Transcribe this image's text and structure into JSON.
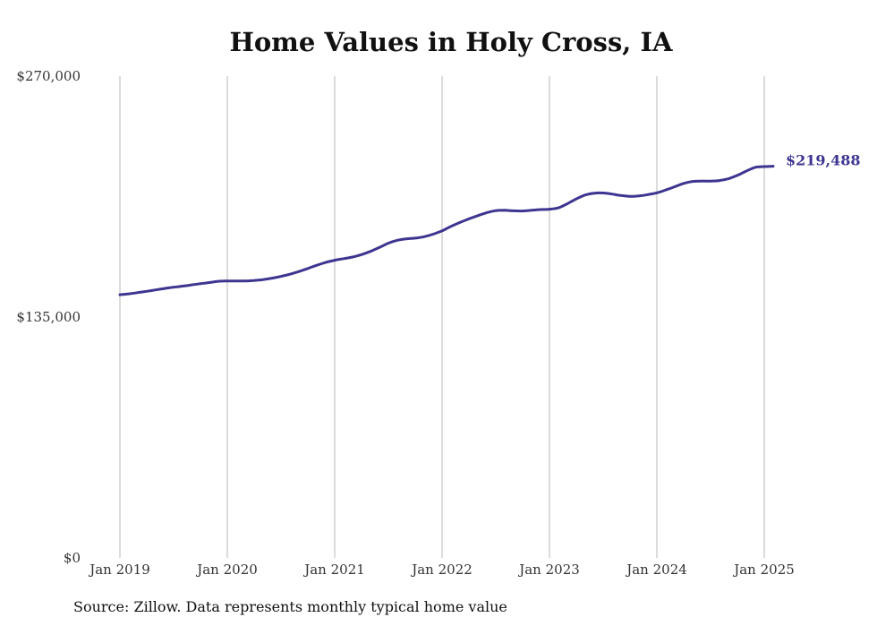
{
  "chart_data": {
    "type": "line",
    "title": "Home Values in Holy Cross, IA",
    "xlabel": "",
    "ylabel": "",
    "ylim": [
      0,
      270000
    ],
    "yticks": [
      {
        "value": 0,
        "label": "$0"
      },
      {
        "value": 135000,
        "label": "$135,000"
      },
      {
        "value": 270000,
        "label": "$270,000"
      }
    ],
    "xticks": [
      {
        "value": 2019,
        "label": "Jan 2019"
      },
      {
        "value": 2020,
        "label": "Jan 2020"
      },
      {
        "value": 2021,
        "label": "Jan 2021"
      },
      {
        "value": 2022,
        "label": "Jan 2022"
      },
      {
        "value": 2023,
        "label": "Jan 2023"
      },
      {
        "value": 2024,
        "label": "Jan 2024"
      },
      {
        "value": 2025,
        "label": "Jan 2025"
      }
    ],
    "xlim": [
      2018.9,
      2026
    ],
    "grid": {
      "vertical": true,
      "horizontal": false
    },
    "line_color": "#3d3590",
    "series": [
      {
        "points": [
          [
            "2019-01",
            147500
          ],
          [
            "2019-02",
            148000
          ],
          [
            "2019-03",
            148700
          ],
          [
            "2019-04",
            149400
          ],
          [
            "2019-05",
            150200
          ],
          [
            "2019-06",
            151000
          ],
          [
            "2019-07",
            151700
          ],
          [
            "2019-08",
            152300
          ],
          [
            "2019-09",
            153000
          ],
          [
            "2019-10",
            153700
          ],
          [
            "2019-11",
            154300
          ],
          [
            "2019-12",
            155000
          ],
          [
            "2020-01",
            155200
          ],
          [
            "2020-02",
            155200
          ],
          [
            "2020-03",
            155200
          ],
          [
            "2020-04",
            155500
          ],
          [
            "2020-05",
            156000
          ],
          [
            "2020-06",
            156800
          ],
          [
            "2020-07",
            157800
          ],
          [
            "2020-08",
            159000
          ],
          [
            "2020-09",
            160500
          ],
          [
            "2020-10",
            162200
          ],
          [
            "2020-11",
            164000
          ],
          [
            "2020-12",
            165600
          ],
          [
            "2021-01",
            166800
          ],
          [
            "2021-02",
            167700
          ],
          [
            "2021-03",
            168600
          ],
          [
            "2021-04",
            170000
          ],
          [
            "2021-05",
            171800
          ],
          [
            "2021-06",
            174000
          ],
          [
            "2021-07",
            176400
          ],
          [
            "2021-08",
            178000
          ],
          [
            "2021-09",
            178800
          ],
          [
            "2021-10",
            179200
          ],
          [
            "2021-11",
            180000
          ],
          [
            "2021-12",
            181400
          ],
          [
            "2022-01",
            183300
          ],
          [
            "2022-02",
            185800
          ],
          [
            "2022-03",
            188000
          ],
          [
            "2022-04",
            190000
          ],
          [
            "2022-05",
            191800
          ],
          [
            "2022-06",
            193500
          ],
          [
            "2022-07",
            194600
          ],
          [
            "2022-08",
            194800
          ],
          [
            "2022-09",
            194500
          ],
          [
            "2022-10",
            194400
          ],
          [
            "2022-11",
            194800
          ],
          [
            "2022-12",
            195200
          ],
          [
            "2023-01",
            195400
          ],
          [
            "2023-02",
            196200
          ],
          [
            "2023-03",
            198500
          ],
          [
            "2023-04",
            201200
          ],
          [
            "2023-05",
            203400
          ],
          [
            "2023-06",
            204400
          ],
          [
            "2023-07",
            204500
          ],
          [
            "2023-08",
            203900
          ],
          [
            "2023-09",
            203100
          ],
          [
            "2023-10",
            202600
          ],
          [
            "2023-11",
            202900
          ],
          [
            "2023-12",
            203600
          ],
          [
            "2024-01",
            204600
          ],
          [
            "2024-02",
            206200
          ],
          [
            "2024-03",
            208000
          ],
          [
            "2024-04",
            209900
          ],
          [
            "2024-05",
            211000
          ],
          [
            "2024-06",
            211200
          ],
          [
            "2024-07",
            211200
          ],
          [
            "2024-08",
            211500
          ],
          [
            "2024-09",
            212500
          ],
          [
            "2024-10",
            214400
          ],
          [
            "2024-11",
            216800
          ],
          [
            "2024-12",
            218900
          ],
          [
            "2025-01",
            219300
          ],
          [
            "2025-02",
            219488
          ]
        ],
        "end_label": "$219,488"
      }
    ]
  },
  "source_note": "Source: Zillow. Data represents monthly typical home value"
}
